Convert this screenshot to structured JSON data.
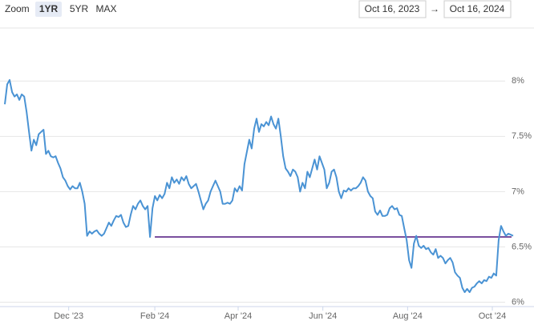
{
  "header": {
    "zoom_label": "Zoom",
    "buttons": [
      "1YR",
      "5YR",
      "MAX"
    ],
    "selected": 0,
    "range_start": "Oct 16, 2023",
    "range_arrow": "→",
    "range_end": "Oct 16, 2024"
  },
  "chart_data": {
    "type": "line",
    "color": "#4a93d4",
    "values": [
      7.79,
      7.97,
      8.01,
      7.9,
      7.86,
      7.88,
      7.83,
      7.88,
      7.86,
      7.72,
      7.54,
      7.37,
      7.47,
      7.42,
      7.52,
      7.54,
      7.56,
      7.34,
      7.37,
      7.32,
      7.31,
      7.32,
      7.26,
      7.21,
      7.13,
      7.1,
      7.05,
      7.02,
      7.05,
      7.03,
      7.03,
      7.08,
      7.0,
      6.89,
      6.6,
      6.64,
      6.62,
      6.64,
      6.65,
      6.62,
      6.6,
      6.62,
      6.67,
      6.72,
      6.69,
      6.74,
      6.78,
      6.77,
      6.79,
      6.72,
      6.68,
      6.69,
      6.79,
      6.87,
      6.84,
      6.89,
      6.92,
      6.87,
      6.84,
      6.87,
      6.59,
      6.85,
      6.96,
      6.92,
      6.97,
      6.94,
      6.98,
      7.08,
      7.03,
      7.13,
      7.08,
      7.11,
      7.07,
      7.13,
      7.1,
      7.14,
      7.07,
      7.03,
      7.05,
      7.07,
      7.0,
      6.92,
      6.84,
      6.89,
      6.92,
      7.0,
      7.05,
      7.1,
      7.05,
      7.0,
      6.89,
      6.89,
      6.9,
      6.89,
      6.92,
      7.03,
      7.0,
      7.05,
      7.01,
      7.25,
      7.36,
      7.47,
      7.39,
      7.57,
      7.66,
      7.54,
      7.61,
      7.59,
      7.63,
      7.6,
      7.68,
      7.61,
      7.57,
      7.66,
      7.5,
      7.32,
      7.21,
      7.18,
      7.14,
      7.2,
      7.18,
      7.13,
      7.0,
      7.08,
      7.03,
      7.18,
      7.13,
      7.21,
      7.29,
      7.2,
      7.32,
      7.26,
      7.2,
      7.03,
      7.08,
      7.18,
      7.2,
      7.13,
      7.0,
      6.94,
      7.01,
      7.0,
      7.03,
      7.01,
      7.03,
      7.03,
      7.05,
      7.08,
      7.13,
      7.1,
      7.0,
      6.96,
      6.94,
      6.82,
      6.79,
      6.83,
      6.78,
      6.78,
      6.79,
      6.85,
      6.87,
      6.84,
      6.85,
      6.79,
      6.78,
      6.67,
      6.56,
      6.38,
      6.31,
      6.53,
      6.6,
      6.51,
      6.49,
      6.51,
      6.48,
      6.49,
      6.45,
      6.43,
      6.48,
      6.4,
      6.42,
      6.4,
      6.35,
      6.38,
      6.4,
      6.36,
      6.27,
      6.24,
      6.22,
      6.13,
      6.09,
      6.12,
      6.09,
      6.13,
      6.14,
      6.17,
      6.19,
      6.17,
      6.2,
      6.19,
      6.23,
      6.22,
      6.26,
      6.24,
      6.56,
      6.69,
      6.64,
      6.6,
      6.62,
      6.61,
      6.6
    ],
    "reference_line": {
      "value": 6.59,
      "start": "2024-02",
      "color": "#7a4f9e"
    },
    "ylim": [
      5.96,
      8.48
    ],
    "yticks": [
      {
        "value": 6,
        "label": "6%"
      },
      {
        "value": 6.5,
        "label": "6.5%"
      },
      {
        "value": 7,
        "label": "7%"
      },
      {
        "value": 7.5,
        "label": "7.5%"
      },
      {
        "value": 8,
        "label": "8%"
      }
    ],
    "xticks": [
      {
        "value": "2023-12",
        "label": "Dec '23"
      },
      {
        "value": "2024-02",
        "label": "Feb '24"
      },
      {
        "value": "2024-04",
        "label": "Apr '24"
      },
      {
        "value": "2024-06",
        "label": "Jun '24"
      },
      {
        "value": "2024-08",
        "label": "Aug '24"
      },
      {
        "value": "2024-10",
        "label": "Oct '24"
      }
    ],
    "grid": true
  }
}
